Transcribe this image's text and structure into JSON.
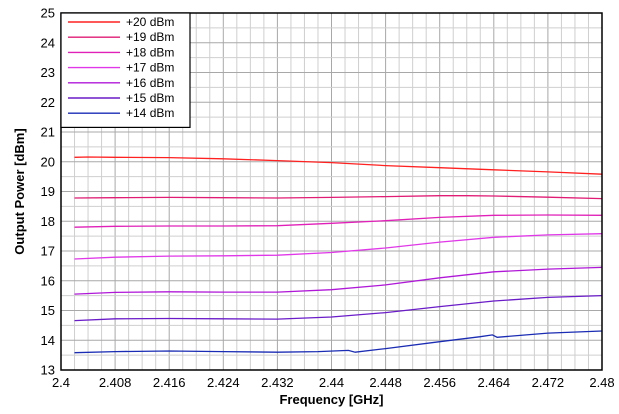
{
  "chart_data": {
    "type": "line",
    "title": "",
    "xlabel": "Frequency [GHz]",
    "ylabel": "Output Power [dBm]",
    "xlim": [
      2.4,
      2.48
    ],
    "ylim": [
      13,
      25
    ],
    "x_ticks": [
      2.4,
      2.408,
      2.416,
      2.424,
      2.432,
      2.44,
      2.448,
      2.456,
      2.464,
      2.472,
      2.48
    ],
    "x_tick_labels": [
      "2.4",
      "2.408",
      "2.416",
      "2.424",
      "2.432",
      "2.44",
      "2.448",
      "2.456",
      "2.464",
      "2.472",
      "2.48"
    ],
    "y_ticks": [
      13,
      14,
      15,
      16,
      17,
      18,
      19,
      20,
      21,
      22,
      23,
      24,
      25
    ],
    "y_tick_labels": [
      "13",
      "14",
      "15",
      "16",
      "17",
      "18",
      "19",
      "20",
      "21",
      "22",
      "23",
      "24",
      "25"
    ],
    "grid": true,
    "legend_position": "top-left",
    "series": [
      {
        "name": "+20 dBm",
        "color": "#ff2020",
        "x": [
          2.402,
          2.404,
          2.408,
          2.416,
          2.424,
          2.432,
          2.44,
          2.448,
          2.456,
          2.464,
          2.472,
          2.48
        ],
        "y": [
          20.15,
          20.16,
          20.15,
          20.14,
          20.1,
          20.04,
          19.97,
          19.87,
          19.8,
          19.73,
          19.66,
          19.58
        ]
      },
      {
        "name": "+19 dBm",
        "color": "#e01c74",
        "x": [
          2.402,
          2.408,
          2.416,
          2.424,
          2.432,
          2.44,
          2.448,
          2.456,
          2.46,
          2.464,
          2.472,
          2.48
        ],
        "y": [
          18.78,
          18.79,
          18.8,
          18.79,
          18.78,
          18.8,
          18.83,
          18.86,
          18.86,
          18.85,
          18.81,
          18.76
        ]
      },
      {
        "name": "+18 dBm",
        "color": "#e020b8",
        "x": [
          2.402,
          2.408,
          2.416,
          2.424,
          2.432,
          2.44,
          2.448,
          2.456,
          2.464,
          2.472,
          2.48
        ],
        "y": [
          17.8,
          17.83,
          17.84,
          17.84,
          17.85,
          17.93,
          18.02,
          18.13,
          18.2,
          18.21,
          18.2
        ]
      },
      {
        "name": "+17 dBm",
        "color": "#e038e8",
        "x": [
          2.402,
          2.408,
          2.416,
          2.424,
          2.432,
          2.44,
          2.448,
          2.456,
          2.464,
          2.472,
          2.48
        ],
        "y": [
          16.73,
          16.79,
          16.83,
          16.84,
          16.86,
          16.95,
          17.1,
          17.3,
          17.46,
          17.54,
          17.58
        ]
      },
      {
        "name": "+16 dBm",
        "color": "#b018d8",
        "x": [
          2.402,
          2.408,
          2.416,
          2.424,
          2.432,
          2.44,
          2.448,
          2.456,
          2.464,
          2.472,
          2.48
        ],
        "y": [
          15.55,
          15.61,
          15.63,
          15.62,
          15.62,
          15.7,
          15.86,
          16.1,
          16.3,
          16.39,
          16.45
        ]
      },
      {
        "name": "+15 dBm",
        "color": "#6a1cc8",
        "x": [
          2.402,
          2.408,
          2.416,
          2.424,
          2.432,
          2.44,
          2.448,
          2.456,
          2.464,
          2.472,
          2.48
        ],
        "y": [
          14.66,
          14.72,
          14.73,
          14.72,
          14.71,
          14.78,
          14.93,
          15.13,
          15.32,
          15.44,
          15.5
        ]
      },
      {
        "name": "+14 dBm",
        "color": "#1a2cb4",
        "x": [
          2.402,
          2.408,
          2.416,
          2.424,
          2.432,
          2.438,
          2.4425,
          2.4435,
          2.448,
          2.456,
          2.462,
          2.4638,
          2.4645,
          2.472,
          2.48
        ],
        "y": [
          13.58,
          13.62,
          13.64,
          13.62,
          13.6,
          13.62,
          13.66,
          13.6,
          13.72,
          13.95,
          14.12,
          14.18,
          14.1,
          14.24,
          14.31
        ]
      }
    ]
  }
}
